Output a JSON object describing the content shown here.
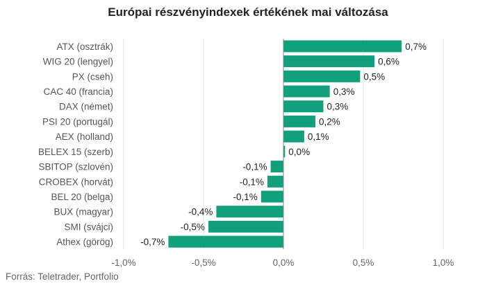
{
  "chart_data": {
    "type": "bar",
    "orientation": "horizontal",
    "title": "Európai részvényindexek értékének mai változása",
    "source": "Forrás: Teletrader, Portfolio",
    "categories": [
      "ATX (osztrák)",
      "WIG 20 (lengyel)",
      "PX (cseh)",
      "CAC 40 (francia)",
      "DAX (német)",
      "PSI 20 (portugál)",
      "AEX (holland)",
      "BELEX 15 (szerb)",
      "SBITOP (szlovén)",
      "CROBEX (horvát)",
      "BEL 20 (belga)",
      "BUX (magyar)",
      "SMI (svájci)",
      "Athex (görög)"
    ],
    "values": [
      0.74,
      0.57,
      0.48,
      0.29,
      0.25,
      0.2,
      0.13,
      0.01,
      -0.08,
      -0.1,
      -0.14,
      -0.42,
      -0.47,
      -0.72
    ],
    "value_labels": [
      "0,7%",
      "0,6%",
      "0,5%",
      "0,3%",
      "0,3%",
      "0,2%",
      "0,1%",
      "0,0%",
      "-0,1%",
      "-0,1%",
      "-0,1%",
      "-0,4%",
      "-0,5%",
      "-0,7%"
    ],
    "xlim": [
      -1.0,
      1.0
    ],
    "xticks": [
      -1.0,
      -0.5,
      0.0,
      0.5,
      1.0
    ],
    "xtick_labels": [
      "-1,0%",
      "-0,5%",
      "0,0%",
      "0,5%",
      "1,0%"
    ],
    "grid": "vertical",
    "legend": "none",
    "bar_color": "#12a07c",
    "grid_color": "#e3e3e3",
    "zero_line_color": "#888888"
  }
}
